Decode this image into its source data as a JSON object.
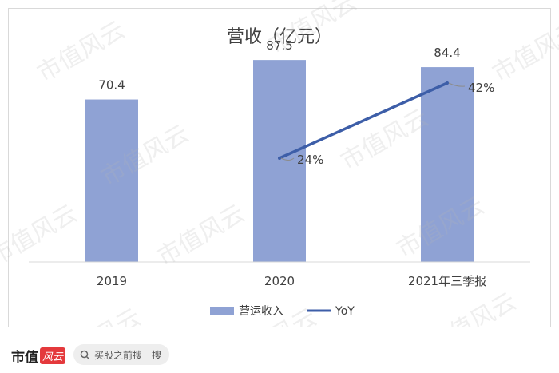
{
  "chart_data": {
    "type": "bar",
    "title": "营收（亿元）",
    "categories": [
      "2019",
      "2020",
      "2021年三季报"
    ],
    "series": [
      {
        "name": "营运收入",
        "kind": "bar",
        "color": "#8fa2d4",
        "values": [
          70.4,
          87.5,
          84.4
        ],
        "labels": [
          "70.4",
          "87.5",
          "84.4"
        ]
      },
      {
        "name": "YoY",
        "kind": "line",
        "color": "#3d5ea8",
        "values": [
          null,
          24,
          42
        ],
        "labels": [
          "",
          "24%",
          "42%"
        ]
      }
    ],
    "ylim": [
      0,
      100
    ],
    "grid": false,
    "legend": "bottom"
  },
  "watermark": "市值风云",
  "footer": {
    "brand": "市值",
    "brand_seal": "风云",
    "search_text": "买股之前搜一搜"
  }
}
